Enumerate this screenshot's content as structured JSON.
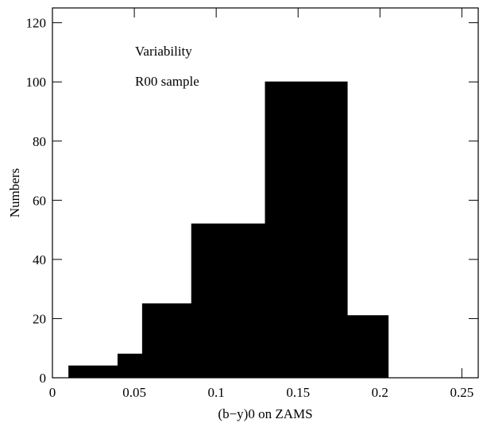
{
  "chart_data": {
    "type": "histogram",
    "xlabel": "(b−y)0 on ZAMS",
    "ylabel": "Numbers",
    "annotations": [
      "Variability",
      "R00 sample"
    ],
    "bins": [
      0.01,
      0.04,
      0.055,
      0.085,
      0.13,
      0.18,
      0.205
    ],
    "counts": [
      4,
      8,
      25,
      52,
      100,
      21
    ],
    "color": "#000000",
    "xlim": [
      0,
      0.26
    ],
    "xticks": [
      0,
      0.05,
      0.1,
      0.15,
      0.2,
      0.25
    ],
    "ylim": [
      0,
      125
    ],
    "yticks": [
      0,
      20,
      40,
      60,
      80,
      100,
      120
    ]
  }
}
